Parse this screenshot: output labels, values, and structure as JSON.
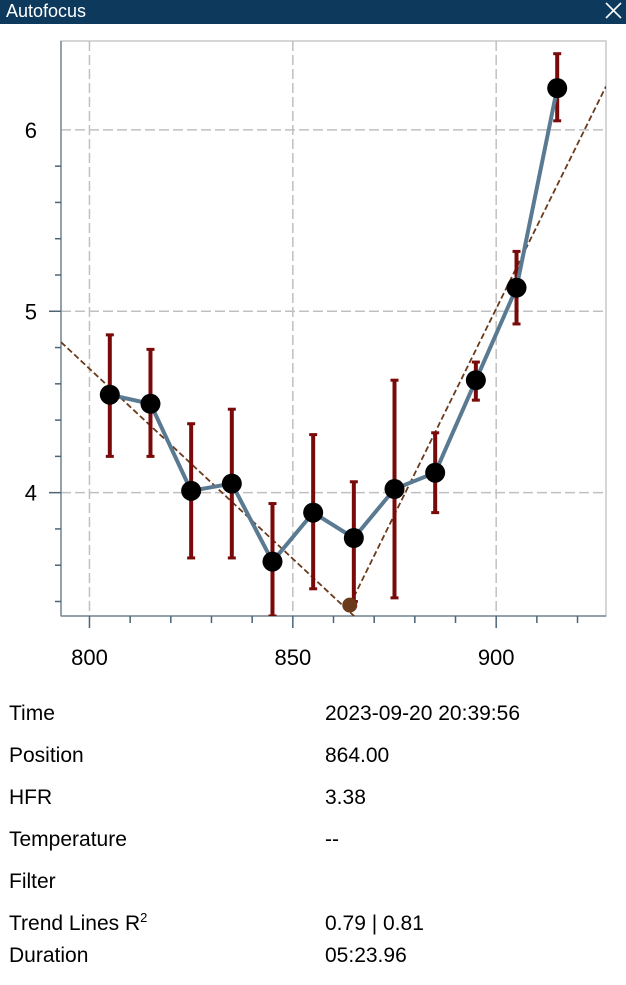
{
  "window": {
    "title": "Autofocus",
    "close_icon": "close-icon"
  },
  "colors": {
    "titlebar": "#0d3a5c",
    "curve_line": "#5a7a92",
    "points": "#000000",
    "error_bars": "#7a0a0a",
    "trend_lines": "#6b3a1a",
    "minimum_point": "#6b3a1a",
    "grid": "#c0c0c0"
  },
  "chart_data": {
    "type": "scatter",
    "xlim": [
      793,
      927
    ],
    "ylim": [
      3.32,
      6.49
    ],
    "x_ticks": [
      800,
      850,
      900
    ],
    "y_ticks": [
      4,
      5,
      6
    ],
    "grid": true,
    "series": [
      {
        "x": [
          805,
          815,
          825,
          835,
          845,
          855,
          865,
          875,
          885,
          895,
          905,
          915
        ],
        "y": [
          4.54,
          4.49,
          4.01,
          4.05,
          3.62,
          3.89,
          3.75,
          4.02,
          4.11,
          4.62,
          5.13,
          6.23
        ],
        "error_low": [
          4.2,
          4.2,
          3.64,
          3.64,
          3.32,
          3.47,
          3.4,
          3.42,
          3.89,
          4.51,
          4.93,
          6.05
        ],
        "error_high": [
          4.87,
          4.79,
          4.38,
          4.46,
          3.94,
          4.32,
          4.06,
          4.62,
          4.33,
          4.72,
          5.33,
          6.42
        ]
      }
    ],
    "trend_lines": [
      {
        "x": [
          793,
          866
        ],
        "y": [
          4.83,
          3.3
        ]
      },
      {
        "x": [
          864,
          927
        ],
        "y": [
          3.38,
          6.24
        ]
      }
    ],
    "minimum": {
      "x": 864,
      "y": 3.38
    }
  },
  "info": [
    {
      "label": "Time",
      "value": "2023-09-20 20:39:56"
    },
    {
      "label": "Position",
      "value": "864.00"
    },
    {
      "label": "HFR",
      "value": "3.38"
    },
    {
      "label": "Temperature",
      "value": "--"
    },
    {
      "label": "Filter",
      "value": ""
    },
    {
      "label": "Trend Lines R",
      "label_sup": "2",
      "value": "0.79 | 0.81"
    },
    {
      "label": "Duration",
      "value": "05:23.96"
    }
  ]
}
